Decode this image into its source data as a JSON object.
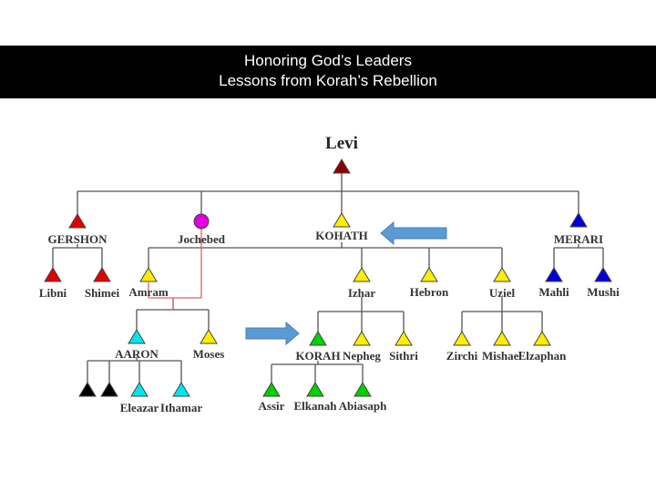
{
  "slide": {
    "title_line1": "Honoring God’s Leaders",
    "title_line2": "Lessons from Korah’s Rebellion"
  },
  "colors": {
    "levi": "#8b0000",
    "gershon": "#e00000",
    "jochebed": "#e000e0",
    "kohath": "#ffee00",
    "merari": "#0000dd",
    "aaron": "#00e5ee",
    "korah": "#00d000",
    "black": "#000000",
    "line": "#555555",
    "marriage_line": "#e06060",
    "arrow": "#5b9bd5"
  },
  "nodes": [
    {
      "id": "levi",
      "label": "Levi",
      "shape": "triangle",
      "color": "levi"
    },
    {
      "id": "gershon",
      "label": "GERSHON",
      "shape": "triangle",
      "color": "gershon"
    },
    {
      "id": "jochebed",
      "label": "Jochebed",
      "shape": "circle",
      "color": "jochebed"
    },
    {
      "id": "kohath",
      "label": "KOHATH",
      "shape": "triangle",
      "color": "kohath"
    },
    {
      "id": "merari",
      "label": "MERARI",
      "shape": "triangle",
      "color": "merari"
    },
    {
      "id": "libni",
      "label": "Libni",
      "shape": "triangle",
      "color": "gershon"
    },
    {
      "id": "shimei",
      "label": "Shimei",
      "shape": "triangle",
      "color": "gershon"
    },
    {
      "id": "amram",
      "label": "Amram",
      "shape": "triangle",
      "color": "kohath"
    },
    {
      "id": "izhar",
      "label": "Izhar",
      "shape": "triangle",
      "color": "kohath"
    },
    {
      "id": "hebron",
      "label": "Hebron",
      "shape": "triangle",
      "color": "kohath"
    },
    {
      "id": "uziel",
      "label": "Uziel",
      "shape": "triangle",
      "color": "kohath"
    },
    {
      "id": "mahli",
      "label": "Mahli",
      "shape": "triangle",
      "color": "merari"
    },
    {
      "id": "mushi",
      "label": "Mushi",
      "shape": "triangle",
      "color": "merari"
    },
    {
      "id": "aaron",
      "label": "AARON",
      "shape": "triangle",
      "color": "aaron"
    },
    {
      "id": "moses",
      "label": "Moses",
      "shape": "triangle",
      "color": "kohath"
    },
    {
      "id": "nadab",
      "label": "",
      "shape": "triangle",
      "color": "black"
    },
    {
      "id": "abihu",
      "label": "",
      "shape": "triangle",
      "color": "black"
    },
    {
      "id": "eleazar",
      "label": "Eleazar",
      "shape": "triangle",
      "color": "aaron"
    },
    {
      "id": "ithamar",
      "label": "Ithamar",
      "shape": "triangle",
      "color": "aaron"
    },
    {
      "id": "korah",
      "label": "KORAH",
      "shape": "triangle",
      "color": "korah"
    },
    {
      "id": "nepheg",
      "label": "Nepheg",
      "shape": "triangle",
      "color": "kohath"
    },
    {
      "id": "sithri",
      "label": "Sithri",
      "shape": "triangle",
      "color": "kohath"
    },
    {
      "id": "zirchi",
      "label": "Zirchi",
      "shape": "triangle",
      "color": "kohath"
    },
    {
      "id": "mishael",
      "label": "Mishael",
      "shape": "triangle",
      "color": "kohath"
    },
    {
      "id": "elzaphan",
      "label": "Elzaphan",
      "shape": "triangle",
      "color": "kohath"
    },
    {
      "id": "assir",
      "label": "Assir",
      "shape": "triangle",
      "color": "korah"
    },
    {
      "id": "elkanah",
      "label": "Elkanah",
      "shape": "triangle",
      "color": "korah"
    },
    {
      "id": "abiasaph",
      "label": "Abiasaph",
      "shape": "triangle",
      "color": "korah"
    }
  ],
  "edges": [
    {
      "parent": "levi",
      "children": [
        "gershon",
        "jochebed",
        "kohath",
        "merari"
      ]
    },
    {
      "parent": "gershon",
      "children": [
        "libni",
        "shimei"
      ]
    },
    {
      "parent": "kohath",
      "children": [
        "amram",
        "izhar",
        "hebron",
        "uziel"
      ]
    },
    {
      "parent": "merari",
      "children": [
        "mahli",
        "mushi"
      ]
    },
    {
      "parent": "amram+jochebed",
      "children": [
        "aaron",
        "moses"
      ]
    },
    {
      "parent": "aaron",
      "children": [
        "nadab",
        "abihu",
        "eleazar",
        "ithamar"
      ]
    },
    {
      "parent": "izhar",
      "children": [
        "korah",
        "nepheg",
        "sithri"
      ]
    },
    {
      "parent": "uziel",
      "children": [
        "zirchi",
        "mishael",
        "elzaphan"
      ]
    },
    {
      "parent": "korah",
      "children": [
        "assir",
        "elkanah",
        "abiasaph"
      ]
    }
  ],
  "arrows": [
    {
      "points_to": "kohath",
      "direction": "left"
    },
    {
      "points_to": "korah",
      "direction": "right"
    }
  ]
}
